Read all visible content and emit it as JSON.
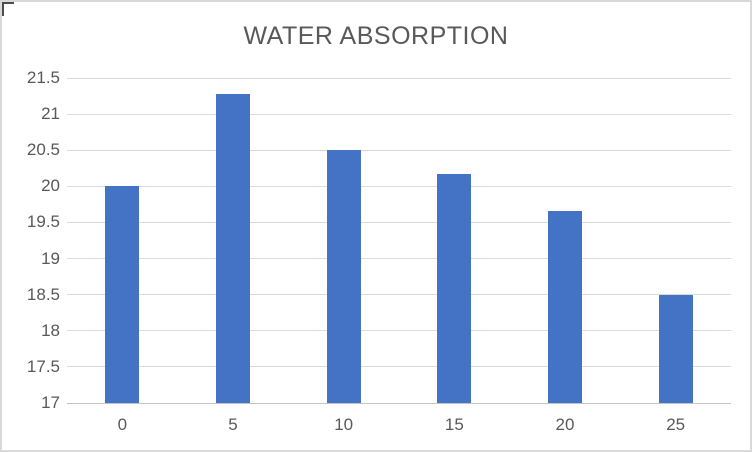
{
  "chart": {
    "colors": {
      "bar": "#4472C4",
      "text": "#595959",
      "gridline": "#DADADA",
      "axis_line": "#C4C4C4",
      "border": "#D9D9D9",
      "background": "#FFFFFF"
    }
  },
  "chart_data": {
    "type": "bar",
    "title": "WATER ABSORPTION",
    "categories": [
      "0",
      "5",
      "10",
      "15",
      "20",
      "25"
    ],
    "values": [
      20,
      21.28,
      20.51,
      20.17,
      19.66,
      18.49
    ],
    "xlabel": "",
    "ylabel": "",
    "ylim": [
      17,
      21.5
    ],
    "ytick_step": 0.5,
    "ytick_labels": [
      "17",
      "17.5",
      "18",
      "18.5",
      "19",
      "19.5",
      "20",
      "20.5",
      "21",
      "21.5"
    ],
    "grid": true,
    "legend": false
  }
}
